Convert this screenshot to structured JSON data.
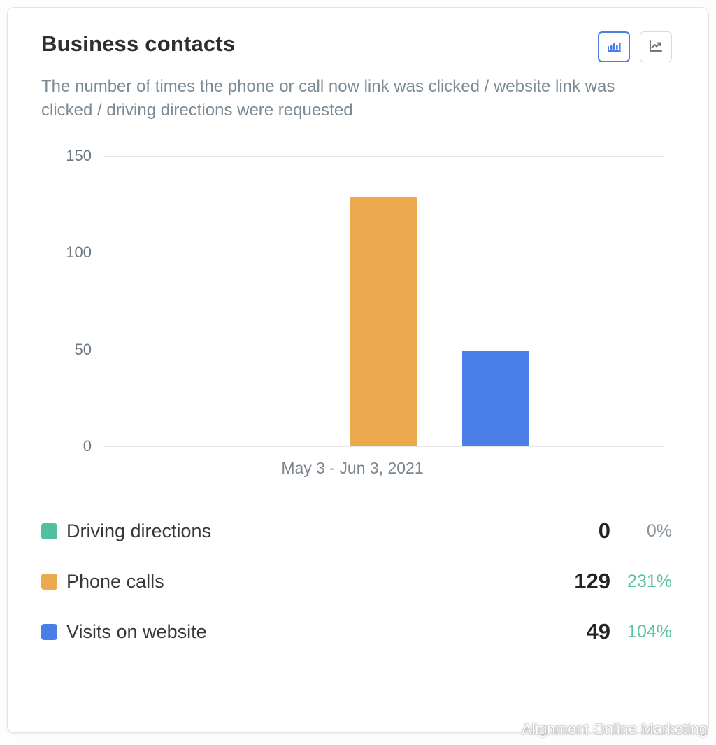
{
  "card": {
    "title": "Business contacts",
    "subtitle": "The number of times the phone or call now link was clicked / website link was clicked / driving directions were requested",
    "watermark": "Alignment Online Marketing"
  },
  "toolbar": {
    "bar_view_active": true,
    "active_color": "#4a7fe8",
    "inactive_color": "#6e7882"
  },
  "chart_data": {
    "type": "bar",
    "title": "Business contacts",
    "categories": [
      "May 3 - Jun 3, 2021"
    ],
    "xlabel": "May 3 - Jun 3, 2021",
    "ylabel": "",
    "ylim": [
      0,
      150
    ],
    "yticks": [
      0,
      50,
      100,
      150
    ],
    "grid": true,
    "legend_position": "bottom",
    "series": [
      {
        "name": "Driving directions",
        "value": 0,
        "color": "#52bfa0",
        "change_pct": "0%",
        "change_color": "#8b959d"
      },
      {
        "name": "Phone calls",
        "value": 129,
        "color": "#eda94e",
        "change_pct": "231%",
        "change_color": "#57c3a4"
      },
      {
        "name": "Visits on website",
        "value": 49,
        "color": "#4a7fe8",
        "change_pct": "104%",
        "change_color": "#57c3a4"
      }
    ]
  }
}
